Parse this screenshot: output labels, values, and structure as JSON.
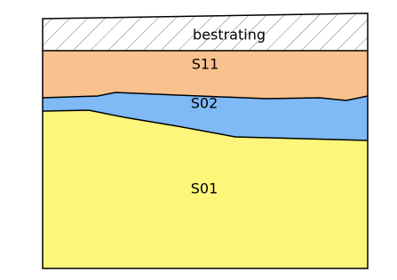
{
  "layers": [
    {
      "label": "bestrating"
    },
    {
      "label": "S11"
    },
    {
      "label": "S02"
    },
    {
      "label": "S01"
    }
  ]
}
